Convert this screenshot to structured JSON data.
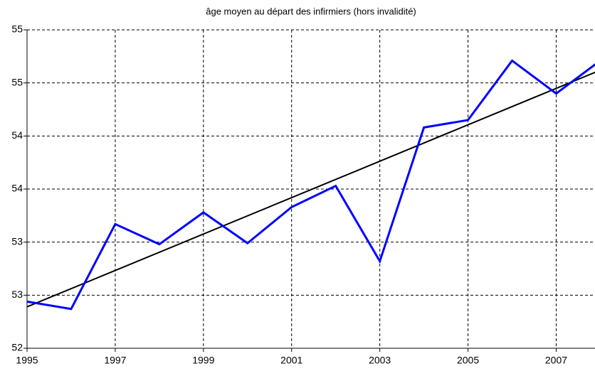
{
  "chart_data": {
    "type": "line",
    "title": "âge moyen au départ des infirmiers (hors invalidité)",
    "x": [
      1995,
      1996,
      1997,
      1998,
      1999,
      2000,
      2001,
      2002,
      2003,
      2004,
      2005,
      2006,
      2007,
      2008
    ],
    "series": [
      {
        "color": "#0000ff",
        "values": [
          52.44,
          52.37,
          53.17,
          52.98,
          53.28,
          52.99,
          53.33,
          53.53,
          52.82,
          54.08,
          54.15,
          54.71,
          54.4,
          54.71
        ]
      }
    ],
    "trend": {
      "color": "#000000",
      "x": [
        1995,
        2008
      ],
      "values": [
        52.39,
        54.62
      ]
    },
    "xlim": [
      1995,
      2007.88
    ],
    "xticks": [
      1995,
      1997,
      1999,
      2001,
      2003,
      2005,
      2007
    ],
    "ylim": [
      52,
      55
    ],
    "yticks": [
      52,
      {
        "value": 52.5,
        "label": "53"
      },
      53,
      {
        "value": 53.5,
        "label": "54"
      },
      54,
      {
        "value": 54.5,
        "label": "55"
      },
      55
    ],
    "grid": true
  }
}
